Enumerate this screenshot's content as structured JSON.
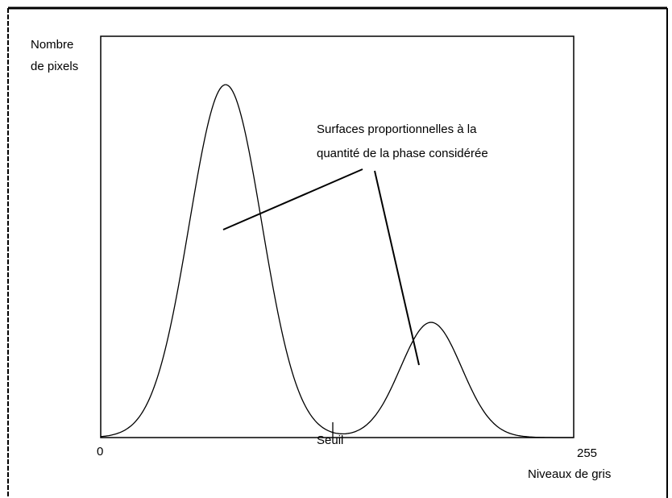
{
  "y_axis": {
    "label_line1": "Nombre",
    "label_line2": "de pixels"
  },
  "x_axis": {
    "start_label": "0",
    "end_label": "255",
    "title": "Niveaux de gris"
  },
  "threshold": {
    "label": "Seuil"
  },
  "annotation": {
    "line1": "Surfaces proportionnelles à la",
    "line2": "quantité de la phase considérée"
  }
}
